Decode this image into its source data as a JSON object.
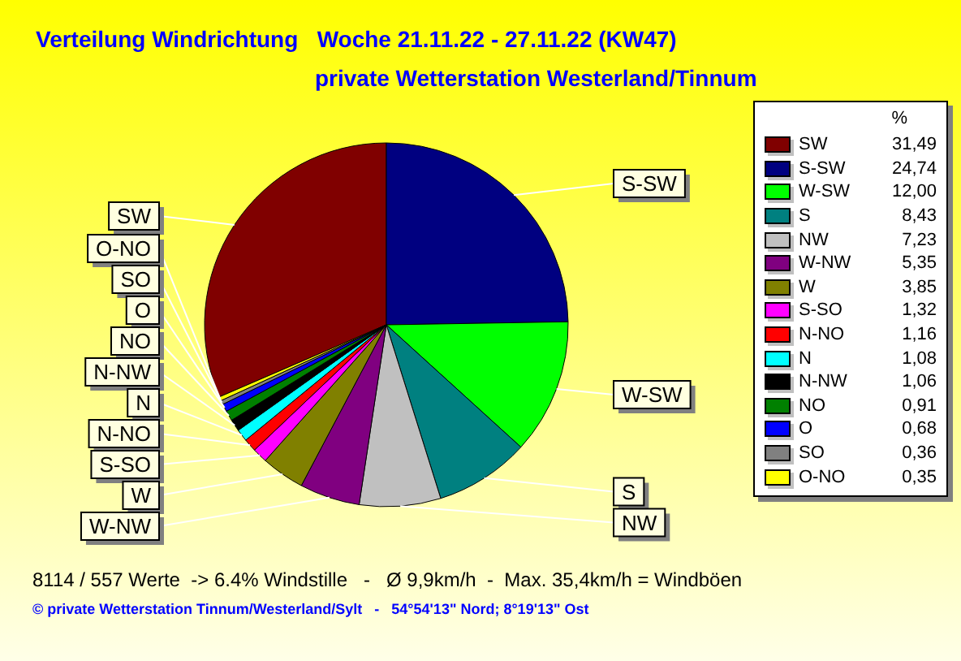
{
  "chart_data": {
    "type": "pie",
    "title": "Verteilung Windrichtung   Woche 21.11.22 - 27.11.22 (KW47)",
    "subtitle": "private Wetterstation Westerland/Tinnum",
    "legend_title": "%",
    "legend": "right",
    "value_labels": [
      "31,49",
      "24,74",
      "12,00",
      "8,43",
      "7,23",
      "5,35",
      "3,85",
      "1,32",
      "1,16",
      "1,08",
      "1,06",
      "0,91",
      "0,68",
      "0,36",
      "0,35"
    ],
    "categories": [
      "SW",
      "S-SW",
      "W-SW",
      "S",
      "NW",
      "W-NW",
      "W",
      "S-SO",
      "N-NO",
      "N",
      "N-NW",
      "NO",
      "O",
      "SO",
      "O-NO"
    ],
    "values": [
      31.49,
      24.74,
      12.0,
      8.43,
      7.23,
      5.35,
      3.85,
      1.32,
      1.16,
      1.08,
      1.06,
      0.91,
      0.68,
      0.36,
      0.35
    ],
    "colors": [
      "#800000",
      "#000080",
      "#00ff00",
      "#008080",
      "#c0c0c0",
      "#800080",
      "#808000",
      "#ff00ff",
      "#ff0000",
      "#00ffff",
      "#000000",
      "#008000",
      "#0000ff",
      "#808080",
      "#ffff00"
    ],
    "annotations": [
      "8114 / 557 Werte  -> 6.4% Windstille   -   Ø 9,9km/h  -  Max. 35,4km/h = Windböen",
      "© private Wetterstation Tinnum/Westerland/Sylt   -   54°54'13\" Nord; 8°19'13\" Ost"
    ]
  }
}
